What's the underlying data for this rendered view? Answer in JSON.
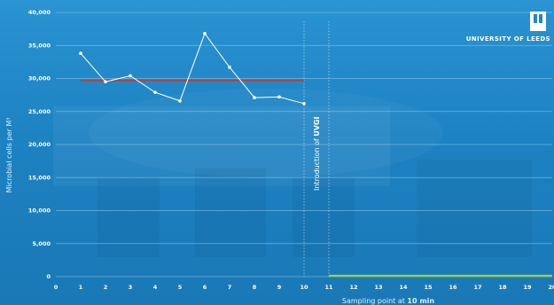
{
  "branding": {
    "logo_text": "UNIVERSITY OF LEEDS"
  },
  "colors": {
    "background": "#1f86c6",
    "series_line": "#ffffff",
    "mean_line": "#b5403a",
    "post_uvgi_line": "#9bd13a",
    "gridline": "#8cc6ea"
  },
  "chart_data": {
    "type": "line",
    "title": "",
    "xlabel_prefix": "Sampling point at ",
    "xlabel_bold": "10 min",
    "ylabel": "Microbial cells per M³",
    "xlim": [
      0,
      20
    ],
    "ylim": [
      0,
      40000
    ],
    "x_ticks": [
      "0",
      "1",
      "2",
      "3",
      "4",
      "5",
      "6",
      "7",
      "8",
      "9",
      "10",
      "11",
      "12",
      "13",
      "14",
      "15",
      "16",
      "17",
      "18",
      "19",
      "20"
    ],
    "y_ticks": [
      "0",
      "5,000",
      "10,000",
      "15,000",
      "20,000",
      "25,000",
      "30,000",
      "35,000",
      "40,000"
    ],
    "y_tick_values": [
      0,
      5000,
      10000,
      15000,
      20000,
      25000,
      30000,
      35000,
      40000
    ],
    "grid": true,
    "series": [
      {
        "x": [
          1,
          2,
          3,
          4,
          5,
          6,
          7,
          8,
          9,
          10
        ],
        "y": [
          33800,
          29500,
          30400,
          27900,
          26600,
          36800,
          31700,
          27100,
          27200,
          26200
        ]
      }
    ],
    "reference_lines": [
      {
        "type": "mean",
        "x_range": [
          1,
          10
        ],
        "y": 29700
      },
      {
        "type": "post",
        "x_range": [
          11,
          20
        ],
        "y": 0
      }
    ],
    "dividers": [
      10,
      11
    ],
    "annotation": {
      "prefix": "Introduction of ",
      "bold": "UVGI",
      "x": 10.5
    }
  }
}
